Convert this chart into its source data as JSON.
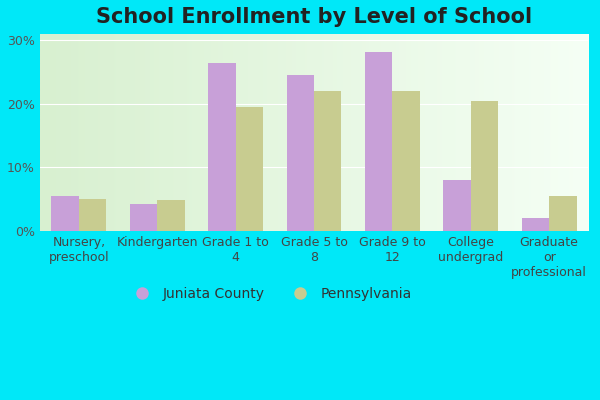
{
  "title": "School Enrollment by Level of School",
  "categories": [
    "Nursery,\npreschool",
    "Kindergarten",
    "Grade 1 to\n4",
    "Grade 5 to\n8",
    "Grade 9 to\n12",
    "College\nundergrad",
    "Graduate\nor\nprofessional"
  ],
  "juniata": [
    5.5,
    4.2,
    26.5,
    24.5,
    28.2,
    8.0,
    2.0
  ],
  "pennsylvania": [
    5.0,
    4.8,
    19.5,
    22.0,
    22.0,
    20.5,
    5.5
  ],
  "juniata_color": "#c8a0d8",
  "pennsylvania_color": "#c8cc90",
  "bg_top_color": "#f5fff5",
  "bg_bottom_color": "#d8f0d0",
  "outer_background": "#00e8f8",
  "ylim": [
    0,
    31
  ],
  "yticks": [
    0,
    10,
    20,
    30
  ],
  "ytick_labels": [
    "0%",
    "10%",
    "20%",
    "30%"
  ],
  "legend_juniata": "Juniata County",
  "legend_pennsylvania": "Pennsylvania",
  "bar_width": 0.35,
  "title_fontsize": 15,
  "tick_fontsize": 9,
  "legend_fontsize": 10
}
